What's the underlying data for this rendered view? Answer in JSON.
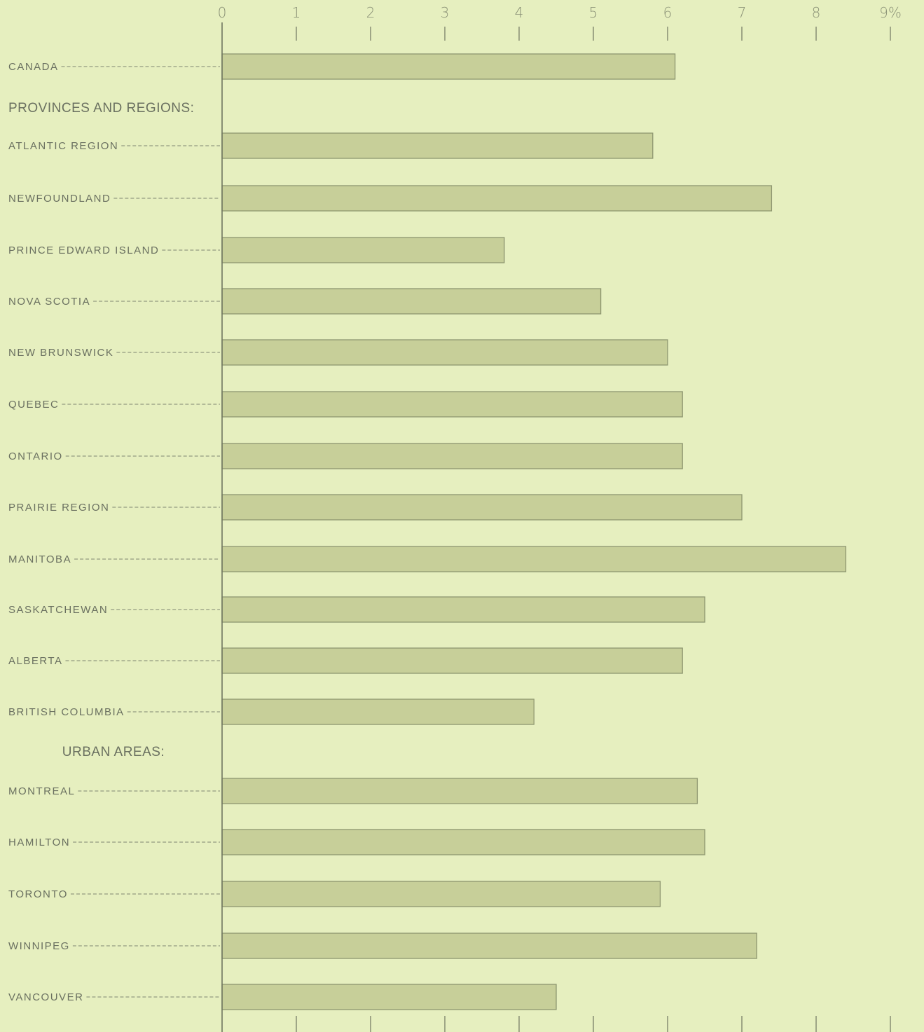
{
  "chart_data": {
    "type": "bar",
    "orientation": "horizontal",
    "title": "",
    "xlabel": "",
    "ylabel": "",
    "xlim": [
      0,
      9
    ],
    "x_ticks": [
      "0",
      "1",
      "2",
      "3",
      "4",
      "5",
      "6",
      "7",
      "8",
      "9%"
    ],
    "grid": false,
    "rows": [
      {
        "kind": "bar",
        "label": "CANADA",
        "value": 6.1
      },
      {
        "kind": "section",
        "label": "PROVINCES AND REGIONS:"
      },
      {
        "kind": "bar",
        "label": "ATLANTIC REGION",
        "value": 5.8
      },
      {
        "kind": "bar",
        "label": "NEWFOUNDLAND",
        "value": 7.4
      },
      {
        "kind": "bar",
        "label": "PRINCE EDWARD ISLAND",
        "value": 3.8
      },
      {
        "kind": "bar",
        "label": "NOVA SCOTIA",
        "value": 5.1
      },
      {
        "kind": "bar",
        "label": "NEW BRUNSWICK",
        "value": 6.0
      },
      {
        "kind": "bar",
        "label": "QUEBEC",
        "value": 6.2
      },
      {
        "kind": "bar",
        "label": "ONTARIO",
        "value": 6.2
      },
      {
        "kind": "bar",
        "label": "PRAIRIE REGION",
        "value": 7.0
      },
      {
        "kind": "bar",
        "label": "MANITOBA",
        "value": 8.4
      },
      {
        "kind": "bar",
        "label": "SASKATCHEWAN",
        "value": 6.5
      },
      {
        "kind": "bar",
        "label": "ALBERTA",
        "value": 6.2
      },
      {
        "kind": "bar",
        "label": "BRITISH COLUMBIA",
        "value": 4.2
      },
      {
        "kind": "section",
        "label": "URBAN AREAS:"
      },
      {
        "kind": "bar",
        "label": "MONTREAL",
        "value": 6.4
      },
      {
        "kind": "bar",
        "label": "HAMILTON",
        "value": 6.5
      },
      {
        "kind": "bar",
        "label": "TORONTO",
        "value": 5.9
      },
      {
        "kind": "bar",
        "label": "WINNIPEG",
        "value": 7.2
      },
      {
        "kind": "bar",
        "label": "VANCOUVER",
        "value": 4.5
      }
    ],
    "colors": {
      "background": "#e6efbf",
      "bar_fill": "#c7cf99",
      "bar_stroke": "#8e9670",
      "text": "#6a7060"
    }
  }
}
